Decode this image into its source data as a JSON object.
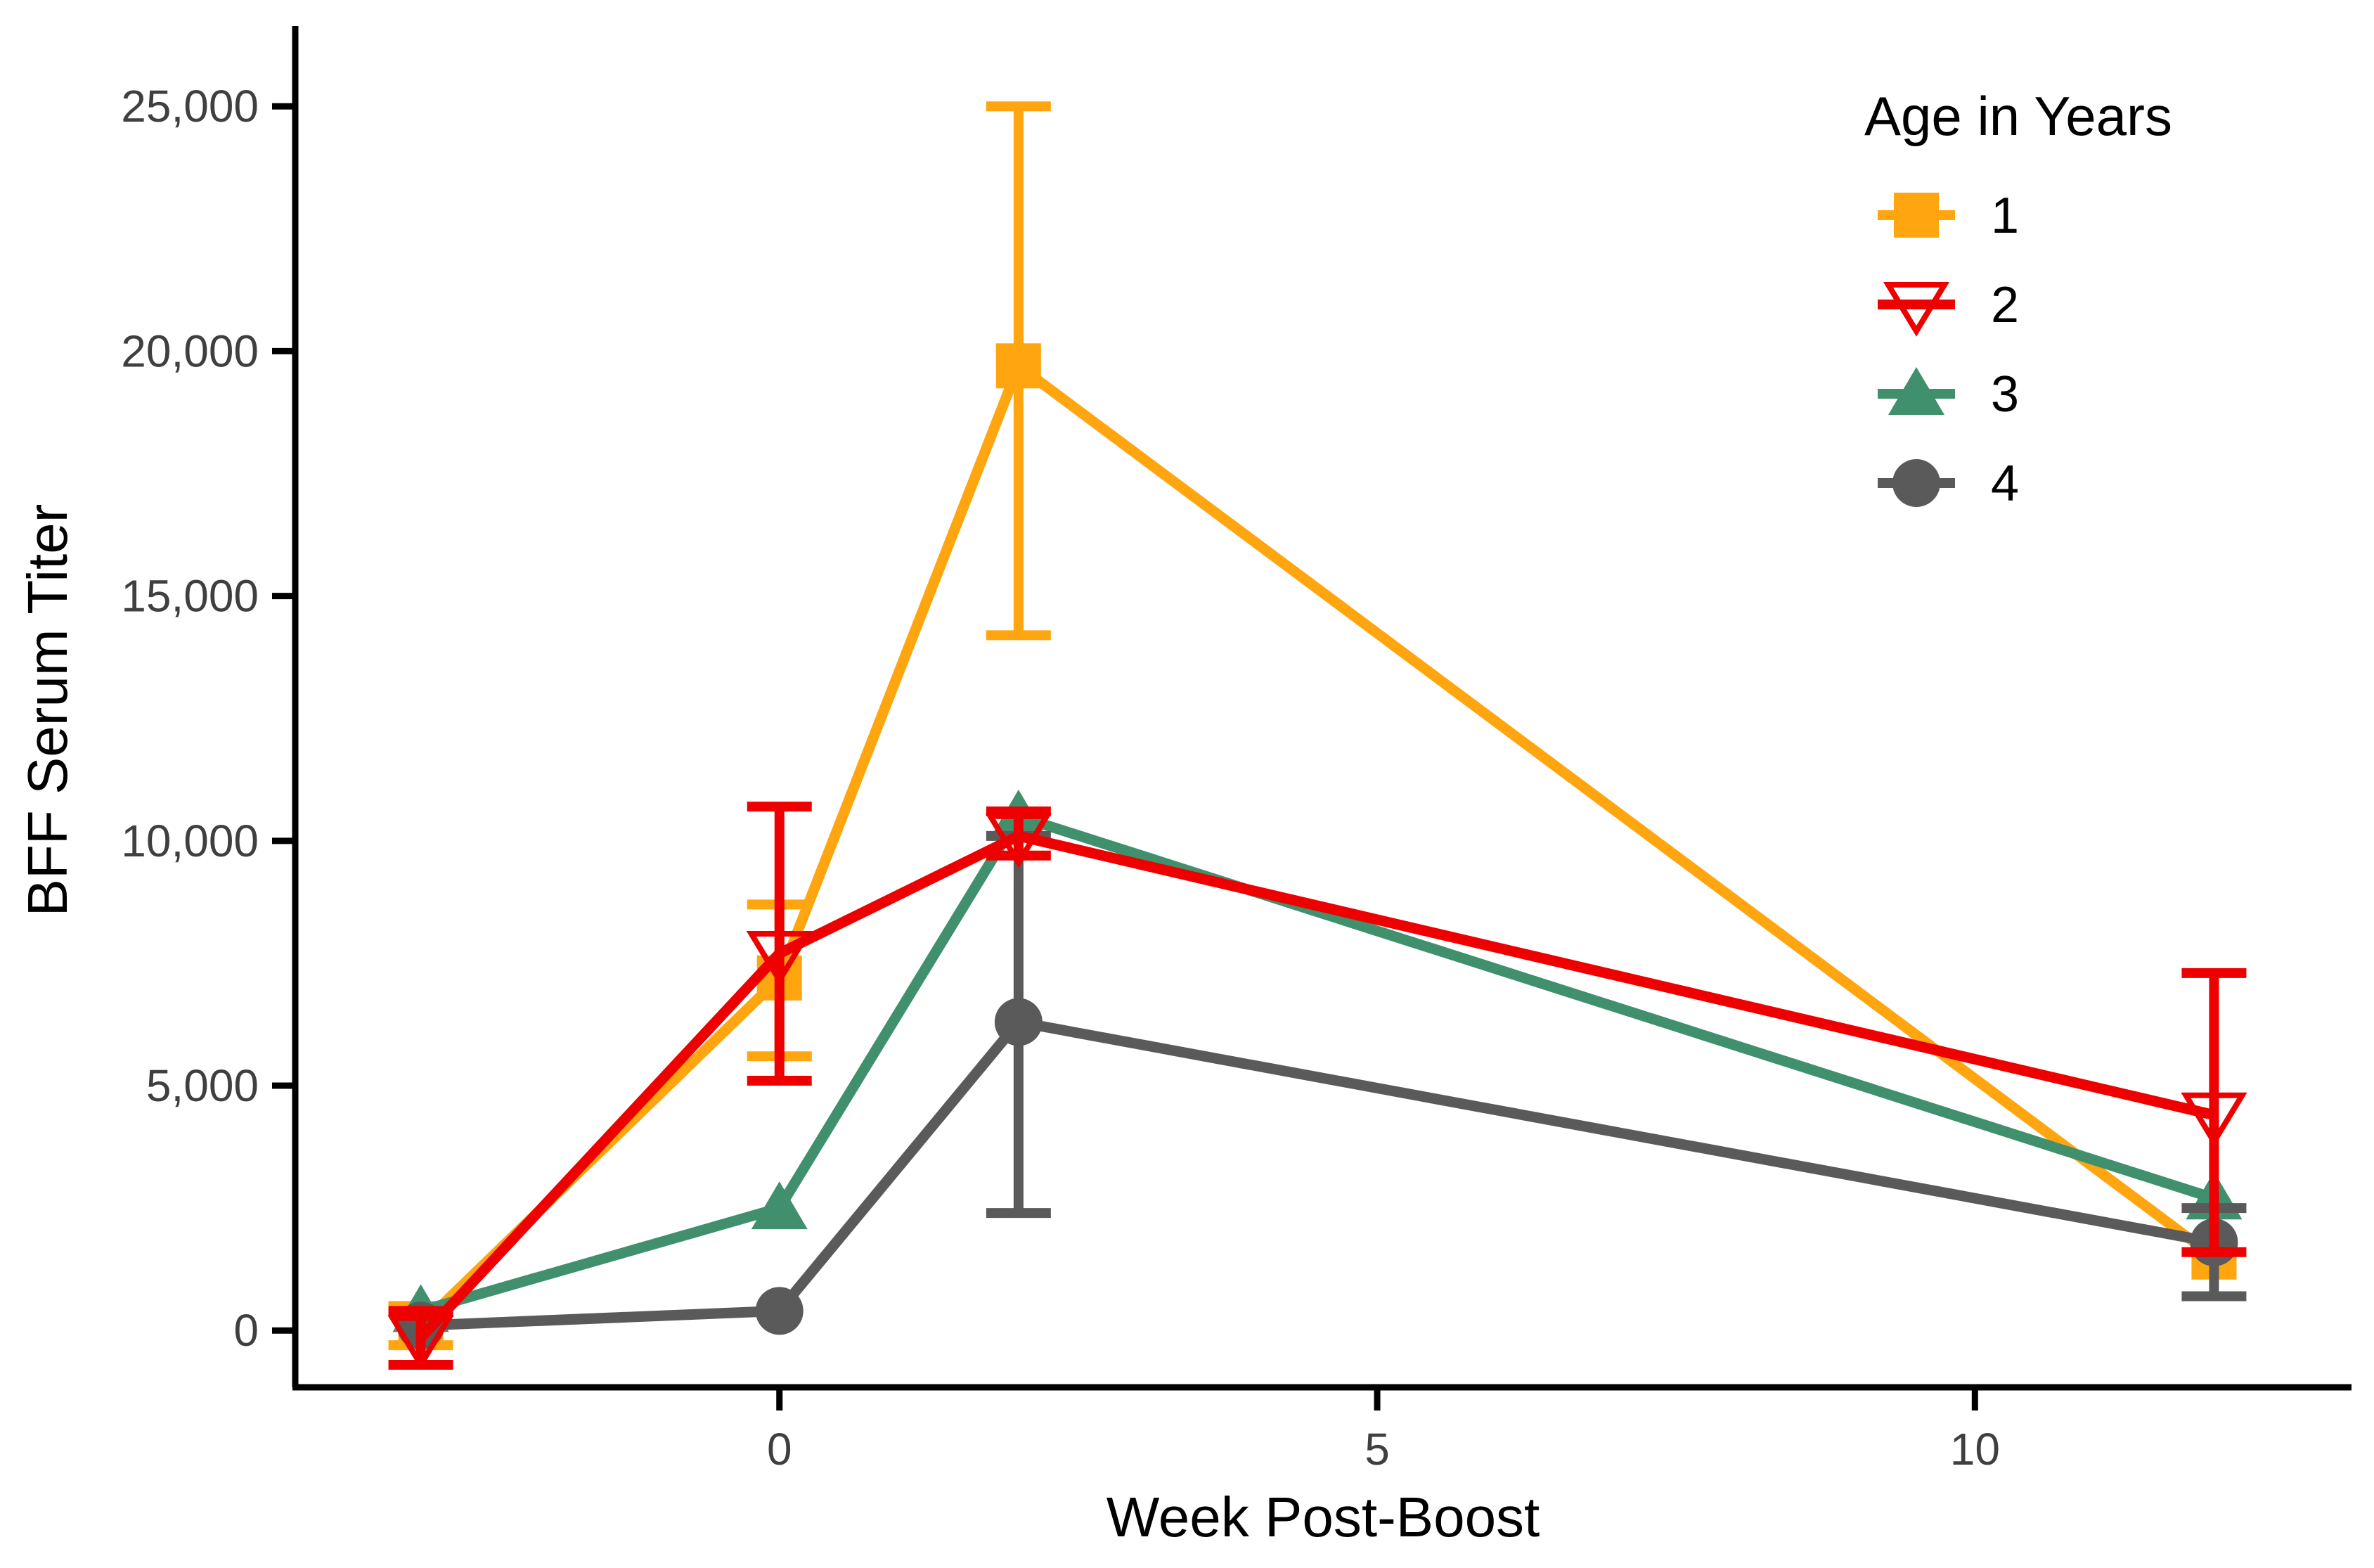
{
  "figure": {
    "background": "#FFFFFF",
    "axis_color": "#000000",
    "tick_label_color": "#3F3F3F",
    "axis_title_color": "#000000"
  },
  "chart_data": {
    "type": "line",
    "title": "",
    "xlabel": "Week Post-Boost",
    "ylabel": "BFF Serum Titer",
    "grid": false,
    "x": [
      -3,
      0,
      2,
      12
    ],
    "x_range": [
      -4.05,
      13.15
    ],
    "y_range": [
      -1160,
      26640
    ],
    "x_ticks": [
      {
        "value": 0,
        "label": "0"
      },
      {
        "value": 5,
        "label": "5"
      },
      {
        "value": 10,
        "label": "10"
      }
    ],
    "y_ticks": [
      {
        "value": 0,
        "label": "0"
      },
      {
        "value": 5000,
        "label": "5,000"
      },
      {
        "value": 10000,
        "label": "10,000"
      },
      {
        "value": 15000,
        "label": "15,000"
      },
      {
        "value": 20000,
        "label": "20,000"
      },
      {
        "value": 25000,
        "label": "25,000"
      }
    ],
    "legend": {
      "title": "Age in Years",
      "position": "top-right"
    },
    "series": [
      {
        "name": "1",
        "color": "#FFA50F",
        "marker": "square-filled",
        "values": [
          100,
          7200,
          19700,
          1500
        ],
        "err_lo": [
          -300,
          5600,
          14200,
          null
        ],
        "err_hi": [
          500,
          8700,
          25000,
          null
        ]
      },
      {
        "name": "2",
        "color": "#EE0000",
        "marker": "triangle-down-open",
        "values": [
          -150,
          7700,
          10100,
          4400
        ],
        "err_lo": [
          -700,
          5100,
          9700,
          1600
        ],
        "err_hi": [
          400,
          10700,
          10600,
          7300
        ]
      },
      {
        "name": "3",
        "color": "#40906E",
        "marker": "triangle-up-filled",
        "values": [
          400,
          2500,
          10500,
          2700
        ],
        "err_lo": [
          null,
          null,
          null,
          null
        ],
        "err_hi": [
          null,
          null,
          null,
          null
        ]
      },
      {
        "name": "4",
        "color": "#5A5A5A",
        "marker": "circle-filled",
        "values": [
          100,
          400,
          6300,
          1800
        ],
        "err_lo": [
          null,
          null,
          2400,
          700
        ],
        "err_hi": [
          null,
          null,
          10100,
          2500
        ]
      }
    ],
    "draw_order": [
      0,
      2,
      3,
      1
    ]
  }
}
